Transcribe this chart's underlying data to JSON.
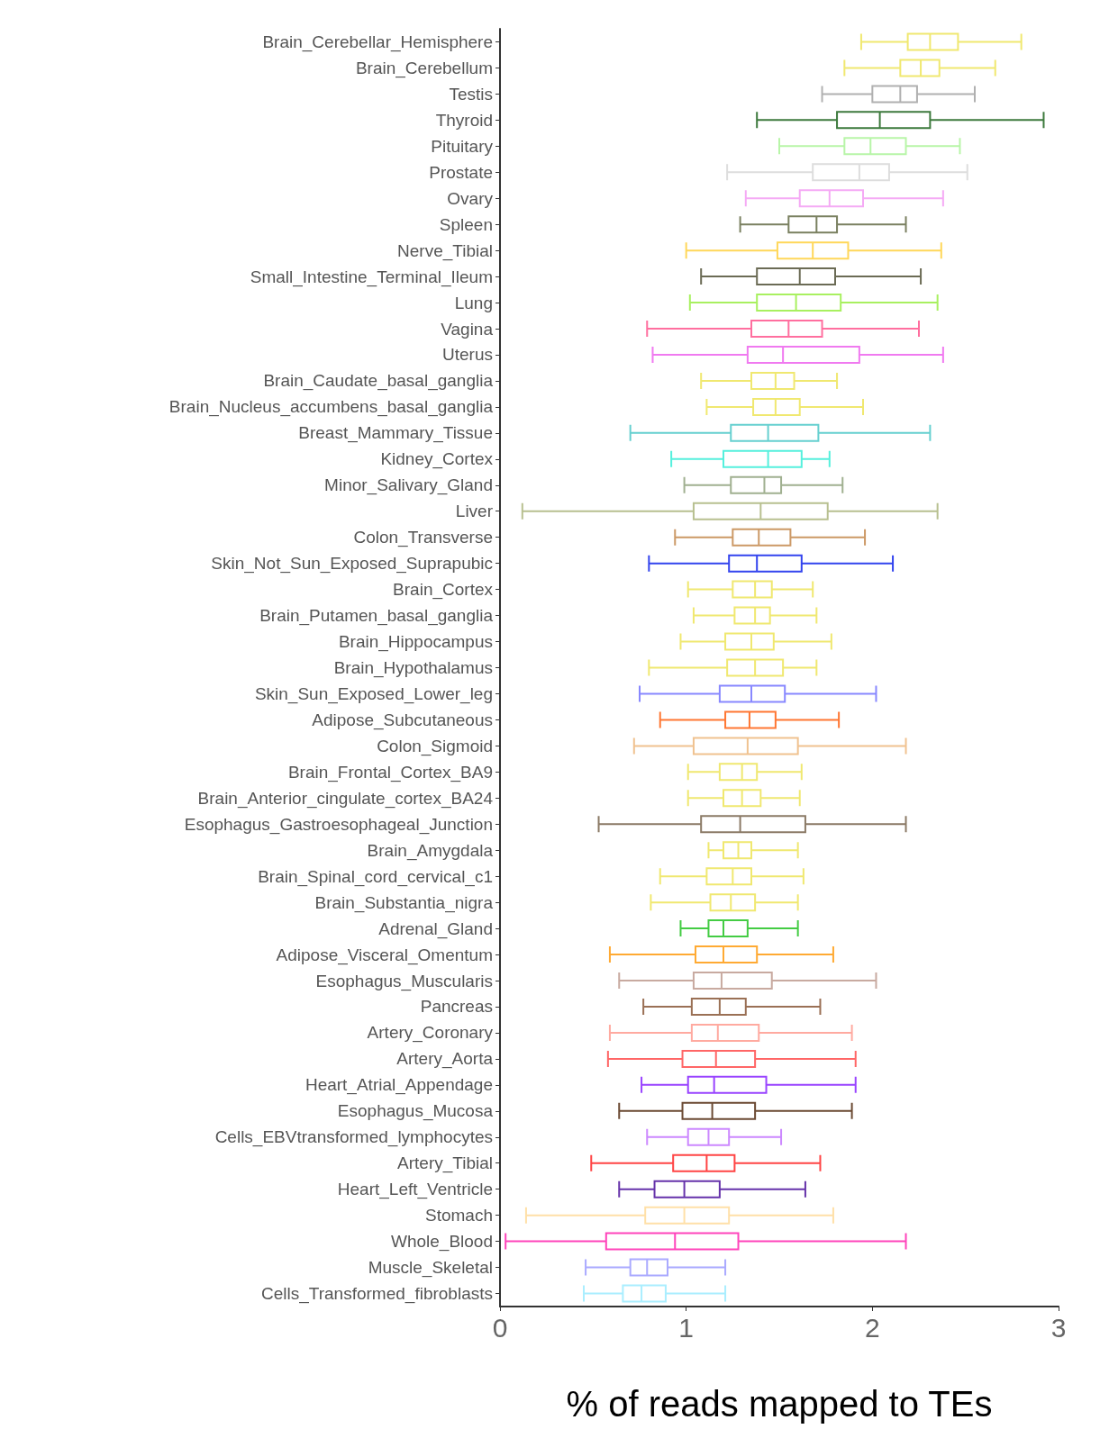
{
  "chart_data": {
    "type": "box",
    "orientation": "horizontal",
    "xlabel": "% of reads mapped to TEs",
    "xlim": [
      0,
      3
    ],
    "xticks": [
      0,
      1,
      2,
      3
    ],
    "grid": false,
    "categories": [
      "Brain_Cerebellar_Hemisphere",
      "Brain_Cerebellum",
      "Testis",
      "Thyroid",
      "Pituitary",
      "Prostate",
      "Ovary",
      "Spleen",
      "Nerve_Tibial",
      "Small_Intestine_Terminal_Ileum",
      "Lung",
      "Vagina",
      "Uterus",
      "Brain_Caudate_basal_ganglia",
      "Brain_Nucleus_accumbens_basal_ganglia",
      "Breast_Mammary_Tissue",
      "Kidney_Cortex",
      "Minor_Salivary_Gland",
      "Liver",
      "Colon_Transverse",
      "Skin_Not_Sun_Exposed_Suprapubic",
      "Brain_Cortex",
      "Brain_Putamen_basal_ganglia",
      "Brain_Hippocampus",
      "Brain_Hypothalamus",
      "Skin_Sun_Exposed_Lower_leg",
      "Adipose_Subcutaneous",
      "Colon_Sigmoid",
      "Brain_Frontal_Cortex_BA9",
      "Brain_Anterior_cingulate_cortex_BA24",
      "Esophagus_Gastroesophageal_Junction",
      "Brain_Amygdala",
      "Brain_Spinal_cord_cervical_c1",
      "Brain_Substantia_nigra",
      "Adrenal_Gland",
      "Adipose_Visceral_Omentum",
      "Esophagus_Muscularis",
      "Pancreas",
      "Artery_Coronary",
      "Artery_Aorta",
      "Heart_Atrial_Appendage",
      "Esophagus_Mucosa",
      "Cells_EBVtransformed_lymphocytes",
      "Artery_Tibial",
      "Heart_Left_Ventricle",
      "Stomach",
      "Whole_Blood",
      "Muscle_Skeletal",
      "Cells_Transformed_fibroblasts"
    ],
    "colors": [
      "#f0e870",
      "#f0e870",
      "#b0b0b0",
      "#3d7a3d",
      "#b8f5a8",
      "#dddddd",
      "#f5aaf5",
      "#7a8060",
      "#ffd75a",
      "#6b6b55",
      "#a8f060",
      "#ff6f9f",
      "#f07af0",
      "#f0e870",
      "#f0e870",
      "#66d0d0",
      "#55f0dd",
      "#a0b090",
      "#b8c090",
      "#cc9966",
      "#3344ee",
      "#f0e870",
      "#f0e870",
      "#f0e870",
      "#f0e870",
      "#8888ff",
      "#ff7733",
      "#f0c290",
      "#f0e870",
      "#f0e870",
      "#8b7a66",
      "#f0e870",
      "#f0e870",
      "#f0e870",
      "#44cc44",
      "#ffaa33",
      "#c8aaa0",
      "#9a7055",
      "#ffaaa0",
      "#ff6666",
      "#9944ff",
      "#6b4a33",
      "#cc88ff",
      "#ff4444",
      "#6633aa",
      "#ffe0a8",
      "#ff44bb",
      "#aaaaff",
      "#aaeeff"
    ],
    "boxes": [
      {
        "low": 1.94,
        "q1": 2.19,
        "median": 2.31,
        "q3": 2.46,
        "high": 2.8
      },
      {
        "low": 1.85,
        "q1": 2.15,
        "median": 2.26,
        "q3": 2.36,
        "high": 2.66
      },
      {
        "low": 1.73,
        "q1": 2.0,
        "median": 2.15,
        "q3": 2.24,
        "high": 2.55
      },
      {
        "low": 1.38,
        "q1": 1.81,
        "median": 2.04,
        "q3": 2.31,
        "high": 2.92
      },
      {
        "low": 1.5,
        "q1": 1.85,
        "median": 1.99,
        "q3": 2.18,
        "high": 2.47
      },
      {
        "low": 1.22,
        "q1": 1.68,
        "median": 1.93,
        "q3": 2.09,
        "high": 2.51
      },
      {
        "low": 1.32,
        "q1": 1.61,
        "median": 1.77,
        "q3": 1.95,
        "high": 2.38
      },
      {
        "low": 1.29,
        "q1": 1.55,
        "median": 1.7,
        "q3": 1.81,
        "high": 2.18
      },
      {
        "low": 1.0,
        "q1": 1.49,
        "median": 1.68,
        "q3": 1.87,
        "high": 2.37
      },
      {
        "low": 1.08,
        "q1": 1.38,
        "median": 1.61,
        "q3": 1.8,
        "high": 2.26
      },
      {
        "low": 1.02,
        "q1": 1.38,
        "median": 1.59,
        "q3": 1.83,
        "high": 2.35
      },
      {
        "low": 0.79,
        "q1": 1.35,
        "median": 1.55,
        "q3": 1.73,
        "high": 2.25
      },
      {
        "low": 0.82,
        "q1": 1.33,
        "median": 1.52,
        "q3": 1.93,
        "high": 2.38
      },
      {
        "low": 1.08,
        "q1": 1.35,
        "median": 1.48,
        "q3": 1.58,
        "high": 1.81
      },
      {
        "low": 1.11,
        "q1": 1.36,
        "median": 1.48,
        "q3": 1.61,
        "high": 1.95
      },
      {
        "low": 0.7,
        "q1": 1.24,
        "median": 1.44,
        "q3": 1.71,
        "high": 2.31
      },
      {
        "low": 0.92,
        "q1": 1.2,
        "median": 1.44,
        "q3": 1.62,
        "high": 1.77
      },
      {
        "low": 0.99,
        "q1": 1.24,
        "median": 1.42,
        "q3": 1.51,
        "high": 1.84
      },
      {
        "low": 0.12,
        "q1": 1.04,
        "median": 1.4,
        "q3": 1.76,
        "high": 2.35
      },
      {
        "low": 0.94,
        "q1": 1.25,
        "median": 1.39,
        "q3": 1.56,
        "high": 1.96
      },
      {
        "low": 0.8,
        "q1": 1.23,
        "median": 1.38,
        "q3": 1.62,
        "high": 2.11
      },
      {
        "low": 1.01,
        "q1": 1.25,
        "median": 1.37,
        "q3": 1.46,
        "high": 1.68
      },
      {
        "low": 1.04,
        "q1": 1.26,
        "median": 1.37,
        "q3": 1.45,
        "high": 1.7
      },
      {
        "low": 0.97,
        "q1": 1.21,
        "median": 1.35,
        "q3": 1.47,
        "high": 1.78
      },
      {
        "low": 0.8,
        "q1": 1.22,
        "median": 1.37,
        "q3": 1.52,
        "high": 1.7
      },
      {
        "low": 0.75,
        "q1": 1.18,
        "median": 1.35,
        "q3": 1.53,
        "high": 2.02
      },
      {
        "low": 0.86,
        "q1": 1.21,
        "median": 1.34,
        "q3": 1.48,
        "high": 1.82
      },
      {
        "low": 0.72,
        "q1": 1.04,
        "median": 1.33,
        "q3": 1.6,
        "high": 2.18
      },
      {
        "low": 1.01,
        "q1": 1.18,
        "median": 1.3,
        "q3": 1.38,
        "high": 1.62
      },
      {
        "low": 1.01,
        "q1": 1.2,
        "median": 1.3,
        "q3": 1.4,
        "high": 1.61
      },
      {
        "low": 0.53,
        "q1": 1.08,
        "median": 1.29,
        "q3": 1.64,
        "high": 2.18
      },
      {
        "low": 1.12,
        "q1": 1.2,
        "median": 1.28,
        "q3": 1.35,
        "high": 1.6
      },
      {
        "low": 0.86,
        "q1": 1.11,
        "median": 1.25,
        "q3": 1.35,
        "high": 1.63
      },
      {
        "low": 0.81,
        "q1": 1.13,
        "median": 1.24,
        "q3": 1.37,
        "high": 1.6
      },
      {
        "low": 0.97,
        "q1": 1.12,
        "median": 1.2,
        "q3": 1.33,
        "high": 1.6
      },
      {
        "low": 0.59,
        "q1": 1.05,
        "median": 1.2,
        "q3": 1.38,
        "high": 1.79
      },
      {
        "low": 0.64,
        "q1": 1.04,
        "median": 1.19,
        "q3": 1.46,
        "high": 2.02
      },
      {
        "low": 0.77,
        "q1": 1.03,
        "median": 1.18,
        "q3": 1.32,
        "high": 1.72
      },
      {
        "low": 0.59,
        "q1": 1.03,
        "median": 1.17,
        "q3": 1.39,
        "high": 1.89
      },
      {
        "low": 0.58,
        "q1": 0.98,
        "median": 1.16,
        "q3": 1.37,
        "high": 1.91
      },
      {
        "low": 0.76,
        "q1": 1.01,
        "median": 1.15,
        "q3": 1.43,
        "high": 1.91
      },
      {
        "low": 0.64,
        "q1": 0.98,
        "median": 1.14,
        "q3": 1.37,
        "high": 1.89
      },
      {
        "low": 0.79,
        "q1": 1.01,
        "median": 1.12,
        "q3": 1.23,
        "high": 1.51
      },
      {
        "low": 0.49,
        "q1": 0.93,
        "median": 1.11,
        "q3": 1.26,
        "high": 1.72
      },
      {
        "low": 0.64,
        "q1": 0.83,
        "median": 0.99,
        "q3": 1.18,
        "high": 1.64
      },
      {
        "low": 0.14,
        "q1": 0.78,
        "median": 0.99,
        "q3": 1.23,
        "high": 1.79
      },
      {
        "low": 0.03,
        "q1": 0.57,
        "median": 0.94,
        "q3": 1.28,
        "high": 2.18
      },
      {
        "low": 0.46,
        "q1": 0.7,
        "median": 0.79,
        "q3": 0.9,
        "high": 1.21
      },
      {
        "low": 0.45,
        "q1": 0.66,
        "median": 0.76,
        "q3": 0.89,
        "high": 1.21
      }
    ]
  }
}
